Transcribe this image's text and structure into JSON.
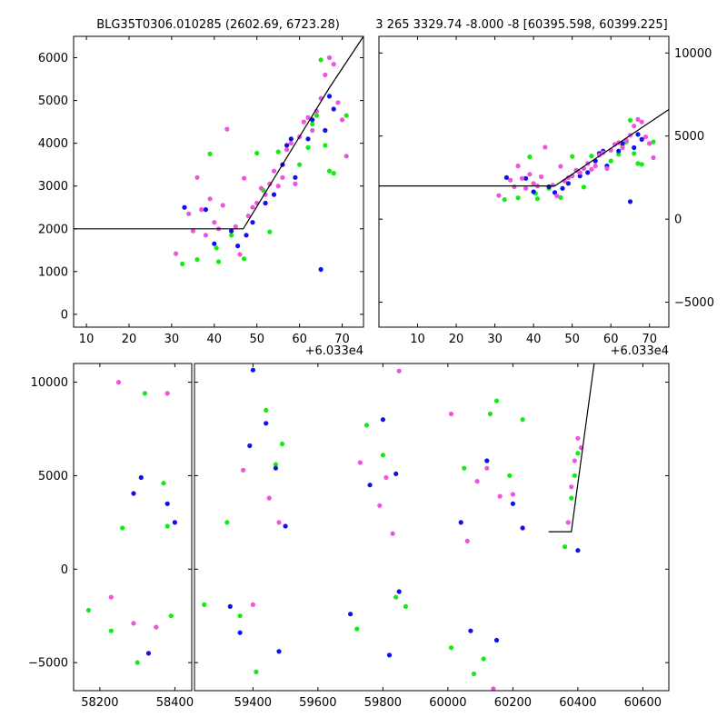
{
  "colors": {
    "blue": "#1010ee",
    "green": "#10ee10",
    "magenta": "#ee55dd",
    "model": "#000000"
  },
  "chart_data": [
    {
      "type": "scatter",
      "title": "BLG35T0306.010285 (2602.69, 6723.28)",
      "offset_label": "+6.033e4",
      "xlim": [
        7,
        75
      ],
      "ylim": [
        -300,
        6500
      ],
      "xticks": [
        10,
        20,
        30,
        40,
        50,
        60,
        70
      ],
      "yticks": [
        0,
        1000,
        2000,
        3000,
        4000,
        5000,
        6000
      ],
      "model": {
        "x": [
          7,
          46.8,
          67,
          75
        ],
        "y": [
          2000,
          2000,
          5300,
          6500
        ]
      },
      "series": [
        {
          "color": "blue",
          "points": [
            [
              33,
              2500
            ],
            [
              38,
              2450
            ],
            [
              40,
              1650
            ],
            [
              44,
              1950
            ],
            [
              45.5,
              1600
            ],
            [
              47.5,
              1850
            ],
            [
              49,
              2150
            ],
            [
              52,
              2600
            ],
            [
              54,
              2800
            ],
            [
              56,
              3500
            ],
            [
              57,
              3950
            ],
            [
              58,
              4100
            ],
            [
              59,
              3200
            ],
            [
              62,
              4100
            ],
            [
              63,
              4550
            ],
            [
              65,
              1050
            ],
            [
              66,
              4300
            ],
            [
              67,
              5100
            ],
            [
              68,
              4800
            ]
          ]
        },
        {
          "color": "green",
          "points": [
            [
              32.5,
              1180
            ],
            [
              36,
              1280
            ],
            [
              39,
              3750
            ],
            [
              40.5,
              1550
            ],
            [
              41,
              1230
            ],
            [
              44,
              1850
            ],
            [
              47,
              1300
            ],
            [
              50,
              3770
            ],
            [
              51.5,
              2900
            ],
            [
              53,
              1930
            ],
            [
              55,
              3800
            ],
            [
              60,
              3500
            ],
            [
              62,
              3900
            ],
            [
              63,
              4450
            ],
            [
              64,
              4650
            ],
            [
              65,
              5950
            ],
            [
              66,
              3950
            ],
            [
              67,
              3350
            ],
            [
              68,
              3300
            ],
            [
              70,
              4550
            ],
            [
              71,
              4650
            ]
          ]
        },
        {
          "color": "magenta",
          "points": [
            [
              31,
              1420
            ],
            [
              34,
              2350
            ],
            [
              35,
              1950
            ],
            [
              36,
              3200
            ],
            [
              37,
              2450
            ],
            [
              38,
              1850
            ],
            [
              39,
              2700
            ],
            [
              40,
              2150
            ],
            [
              41,
              2000
            ],
            [
              42,
              2550
            ],
            [
              43,
              4330
            ],
            [
              45,
              2050
            ],
            [
              46,
              1400
            ],
            [
              47,
              3180
            ],
            [
              48,
              2300
            ],
            [
              49,
              2500
            ],
            [
              50,
              2600
            ],
            [
              51,
              2950
            ],
            [
              52,
              2800
            ],
            [
              53,
              3050
            ],
            [
              54,
              3350
            ],
            [
              55,
              3000
            ],
            [
              56,
              3200
            ],
            [
              57,
              3850
            ],
            [
              58,
              4000
            ],
            [
              59,
              3050
            ],
            [
              60,
              4150
            ],
            [
              61,
              4500
            ],
            [
              62,
              4600
            ],
            [
              63,
              4300
            ],
            [
              64,
              4750
            ],
            [
              65,
              5050
            ],
            [
              66,
              5600
            ],
            [
              67,
              6000
            ],
            [
              68,
              5850
            ],
            [
              69,
              4950
            ],
            [
              70,
              4550
            ],
            [
              71,
              3700
            ]
          ]
        }
      ]
    },
    {
      "type": "scatter",
      "title": "3 265 3329.74 -8.000 -8 [60395.598, 60399.225]",
      "offset_label": "+6.033e4",
      "xlim": [
        0,
        75
      ],
      "ylim": [
        -6500,
        11000
      ],
      "xticks": [
        10,
        20,
        30,
        40,
        50,
        60,
        70
      ],
      "yticks": [
        -5000,
        0,
        5000,
        10000
      ],
      "model": {
        "x": [
          0,
          28,
          45.5,
          75
        ],
        "y": [
          2000,
          2000,
          2000,
          6600
        ]
      },
      "series": [
        {
          "color": "blue",
          "points": [
            [
              33,
              2500
            ],
            [
              38,
              2450
            ],
            [
              40,
              1650
            ],
            [
              44,
              1950
            ],
            [
              45.5,
              1600
            ],
            [
              47.5,
              1850
            ],
            [
              49,
              2150
            ],
            [
              52,
              2600
            ],
            [
              54,
              2800
            ],
            [
              56,
              3500
            ],
            [
              57,
              3950
            ],
            [
              58,
              4100
            ],
            [
              59,
              3200
            ],
            [
              62,
              4100
            ],
            [
              63,
              4550
            ],
            [
              65,
              1050
            ],
            [
              66,
              4300
            ],
            [
              67,
              5100
            ],
            [
              68,
              4800
            ]
          ]
        },
        {
          "color": "green",
          "points": [
            [
              32.5,
              1180
            ],
            [
              36,
              1280
            ],
            [
              39,
              3750
            ],
            [
              40.5,
              1550
            ],
            [
              41,
              1230
            ],
            [
              44,
              1850
            ],
            [
              47,
              1300
            ],
            [
              50,
              3770
            ],
            [
              51.5,
              2900
            ],
            [
              53,
              1930
            ],
            [
              55,
              3800
            ],
            [
              60,
              3500
            ],
            [
              62,
              3900
            ],
            [
              63,
              4450
            ],
            [
              64,
              4650
            ],
            [
              65,
              5950
            ],
            [
              66,
              3950
            ],
            [
              67,
              3350
            ],
            [
              68,
              3300
            ],
            [
              70,
              4550
            ],
            [
              71,
              4650
            ]
          ]
        },
        {
          "color": "magenta",
          "points": [
            [
              31,
              1420
            ],
            [
              34,
              2350
            ],
            [
              35,
              1950
            ],
            [
              36,
              3200
            ],
            [
              37,
              2450
            ],
            [
              38,
              1850
            ],
            [
              39,
              2700
            ],
            [
              40,
              2150
            ],
            [
              41,
              2000
            ],
            [
              42,
              2550
            ],
            [
              43,
              4330
            ],
            [
              45,
              2050
            ],
            [
              46,
              1400
            ],
            [
              47,
              3180
            ],
            [
              48,
              2300
            ],
            [
              49,
              2500
            ],
            [
              50,
              2600
            ],
            [
              51,
              2950
            ],
            [
              52,
              2800
            ],
            [
              53,
              3050
            ],
            [
              54,
              3350
            ],
            [
              55,
              3000
            ],
            [
              56,
              3200
            ],
            [
              57,
              3850
            ],
            [
              58,
              4000
            ],
            [
              59,
              3050
            ],
            [
              60,
              4150
            ],
            [
              61,
              4500
            ],
            [
              62,
              4600
            ],
            [
              63,
              4300
            ],
            [
              64,
              4750
            ],
            [
              65,
              5050
            ],
            [
              66,
              5600
            ],
            [
              67,
              6000
            ],
            [
              68,
              5850
            ],
            [
              69,
              4950
            ],
            [
              70,
              4550
            ],
            [
              71,
              3700
            ]
          ]
        }
      ]
    },
    {
      "type": "scatter",
      "title": "",
      "xlim": [
        58130,
        60680
      ],
      "ylim": [
        -6500,
        11000
      ],
      "xticks": [
        58200,
        58400,
        59400,
        59600,
        59800,
        60000,
        60200,
        60400,
        60600
      ],
      "yticks": [
        -5000,
        0,
        5000,
        10000
      ],
      "model": {
        "x": [
          60310,
          60380,
          60450
        ],
        "y": [
          2000,
          2000,
          11000
        ]
      },
      "series": [
        {
          "color": "blue",
          "points": [
            [
              58290,
              4050
            ],
            [
              58310,
              4900
            ],
            [
              58330,
              -4500
            ],
            [
              58380,
              3500
            ],
            [
              58400,
              2500
            ],
            [
              59330,
              -2000
            ],
            [
              59360,
              -3400
            ],
            [
              59390,
              6600
            ],
            [
              59400,
              10650
            ],
            [
              59440,
              7800
            ],
            [
              59470,
              5400
            ],
            [
              59480,
              -4400
            ],
            [
              59500,
              2300
            ],
            [
              59700,
              -2400
            ],
            [
              59760,
              4500
            ],
            [
              59800,
              8000
            ],
            [
              59820,
              -4600
            ],
            [
              59840,
              5100
            ],
            [
              59850,
              -1200
            ],
            [
              60040,
              2500
            ],
            [
              60070,
              -3300
            ],
            [
              60120,
              5800
            ],
            [
              60150,
              -3800
            ],
            [
              60200,
              3500
            ],
            [
              60230,
              2200
            ],
            [
              60400,
              1000
            ]
          ]
        },
        {
          "color": "green",
          "points": [
            [
              58170,
              -2200
            ],
            [
              58230,
              -3300
            ],
            [
              58260,
              2200
            ],
            [
              58300,
              -5000
            ],
            [
              58320,
              9400
            ],
            [
              58350,
              -3100
            ],
            [
              58370,
              4600
            ],
            [
              58380,
              2300
            ],
            [
              58390,
              -2500
            ],
            [
              59250,
              -1900
            ],
            [
              59320,
              2500
            ],
            [
              59360,
              -2500
            ],
            [
              59410,
              -5500
            ],
            [
              59440,
              8500
            ],
            [
              59470,
              5600
            ],
            [
              59490,
              6700
            ],
            [
              59720,
              -3200
            ],
            [
              59750,
              7700
            ],
            [
              59800,
              6100
            ],
            [
              59840,
              -1500
            ],
            [
              59870,
              -2000
            ],
            [
              60010,
              -4200
            ],
            [
              60050,
              5400
            ],
            [
              60080,
              -5600
            ],
            [
              60110,
              -4800
            ],
            [
              60130,
              8300
            ],
            [
              60150,
              9000
            ],
            [
              60190,
              5000
            ],
            [
              60230,
              8000
            ],
            [
              60360,
              1200
            ],
            [
              60380,
              3800
            ],
            [
              60390,
              5000
            ],
            [
              60400,
              6200
            ]
          ]
        },
        {
          "color": "magenta",
          "points": [
            [
              58230,
              -1500
            ],
            [
              58250,
              10000
            ],
            [
              58290,
              -2900
            ],
            [
              58350,
              -3100
            ],
            [
              58380,
              9400
            ],
            [
              59370,
              5300
            ],
            [
              59400,
              -1900
            ],
            [
              59450,
              3800
            ],
            [
              59480,
              2500
            ],
            [
              59730,
              5700
            ],
            [
              59790,
              3400
            ],
            [
              59810,
              4900
            ],
            [
              59830,
              1900
            ],
            [
              59850,
              10600
            ],
            [
              60010,
              8300
            ],
            [
              60060,
              1500
            ],
            [
              60090,
              4700
            ],
            [
              60120,
              5400
            ],
            [
              60140,
              -6400
            ],
            [
              60160,
              3900
            ],
            [
              60200,
              4000
            ],
            [
              60370,
              2500
            ],
            [
              60380,
              4400
            ],
            [
              60390,
              5800
            ],
            [
              60400,
              7000
            ],
            [
              60410,
              6500
            ]
          ]
        }
      ]
    }
  ]
}
